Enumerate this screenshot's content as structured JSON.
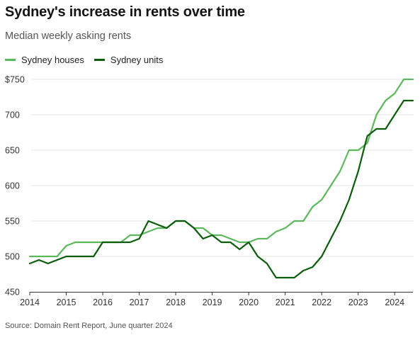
{
  "title": "Sydney's increase in rents over time",
  "subtitle": "Median weekly asking rents",
  "source": "Source: Domain Rent Report, June quarter 2024",
  "colors": {
    "houses": "#5cb85c",
    "units": "#0b5c0b",
    "grid": "#e6e6e6",
    "axis": "#333333"
  },
  "chart_data": {
    "type": "line",
    "title": "Sydney's increase in rents over time",
    "subtitle": "Median weekly asking rents",
    "xlabel": "",
    "ylabel": "",
    "xlim": [
      2014,
      2024.5
    ],
    "ylim": [
      450,
      750
    ],
    "x_ticks": [
      2014,
      2015,
      2016,
      2017,
      2018,
      2019,
      2020,
      2021,
      2022,
      2023,
      2024
    ],
    "y_ticks": [
      {
        "value": 750,
        "label": "$750"
      },
      {
        "value": 700,
        "label": "700"
      },
      {
        "value": 650,
        "label": "650"
      },
      {
        "value": 600,
        "label": "600"
      },
      {
        "value": 550,
        "label": "550"
      },
      {
        "value": 500,
        "label": "500"
      },
      {
        "value": 450,
        "label": "450"
      }
    ],
    "grid": true,
    "legend_position": "top-left",
    "series": [
      {
        "name": "Sydney houses",
        "color": "#5cb85c",
        "x": [
          2014.0,
          2014.25,
          2014.5,
          2014.75,
          2015.0,
          2015.25,
          2015.5,
          2015.75,
          2016.0,
          2016.25,
          2016.5,
          2016.75,
          2017.0,
          2017.25,
          2017.5,
          2017.75,
          2018.0,
          2018.25,
          2018.5,
          2018.75,
          2019.0,
          2019.25,
          2019.5,
          2019.75,
          2020.0,
          2020.25,
          2020.5,
          2020.75,
          2021.0,
          2021.25,
          2021.5,
          2021.75,
          2022.0,
          2022.25,
          2022.5,
          2022.75,
          2023.0,
          2023.25,
          2023.5,
          2023.75,
          2024.0,
          2024.25,
          2024.5
        ],
        "y": [
          500,
          500,
          500,
          500,
          515,
          520,
          520,
          520,
          520,
          520,
          520,
          530,
          530,
          535,
          540,
          540,
          550,
          550,
          540,
          540,
          530,
          530,
          525,
          520,
          520,
          525,
          525,
          535,
          540,
          550,
          550,
          570,
          580,
          600,
          620,
          650,
          650,
          660,
          700,
          720,
          730,
          750,
          750
        ]
      },
      {
        "name": "Sydney units",
        "color": "#0b5c0b",
        "x": [
          2014.0,
          2014.25,
          2014.5,
          2014.75,
          2015.0,
          2015.25,
          2015.5,
          2015.75,
          2016.0,
          2016.25,
          2016.5,
          2016.75,
          2017.0,
          2017.25,
          2017.5,
          2017.75,
          2018.0,
          2018.25,
          2018.5,
          2018.75,
          2019.0,
          2019.25,
          2019.5,
          2019.75,
          2020.0,
          2020.25,
          2020.5,
          2020.75,
          2021.0,
          2021.25,
          2021.5,
          2021.75,
          2022.0,
          2022.25,
          2022.5,
          2022.75,
          2023.0,
          2023.25,
          2023.5,
          2023.75,
          2024.0,
          2024.25,
          2024.5
        ],
        "y": [
          490,
          495,
          490,
          495,
          500,
          500,
          500,
          500,
          520,
          520,
          520,
          520,
          525,
          550,
          545,
          540,
          550,
          550,
          540,
          525,
          530,
          520,
          520,
          510,
          520,
          500,
          490,
          470,
          470,
          470,
          480,
          485,
          500,
          525,
          550,
          580,
          620,
          670,
          680,
          680,
          700,
          720,
          720
        ]
      }
    ]
  }
}
